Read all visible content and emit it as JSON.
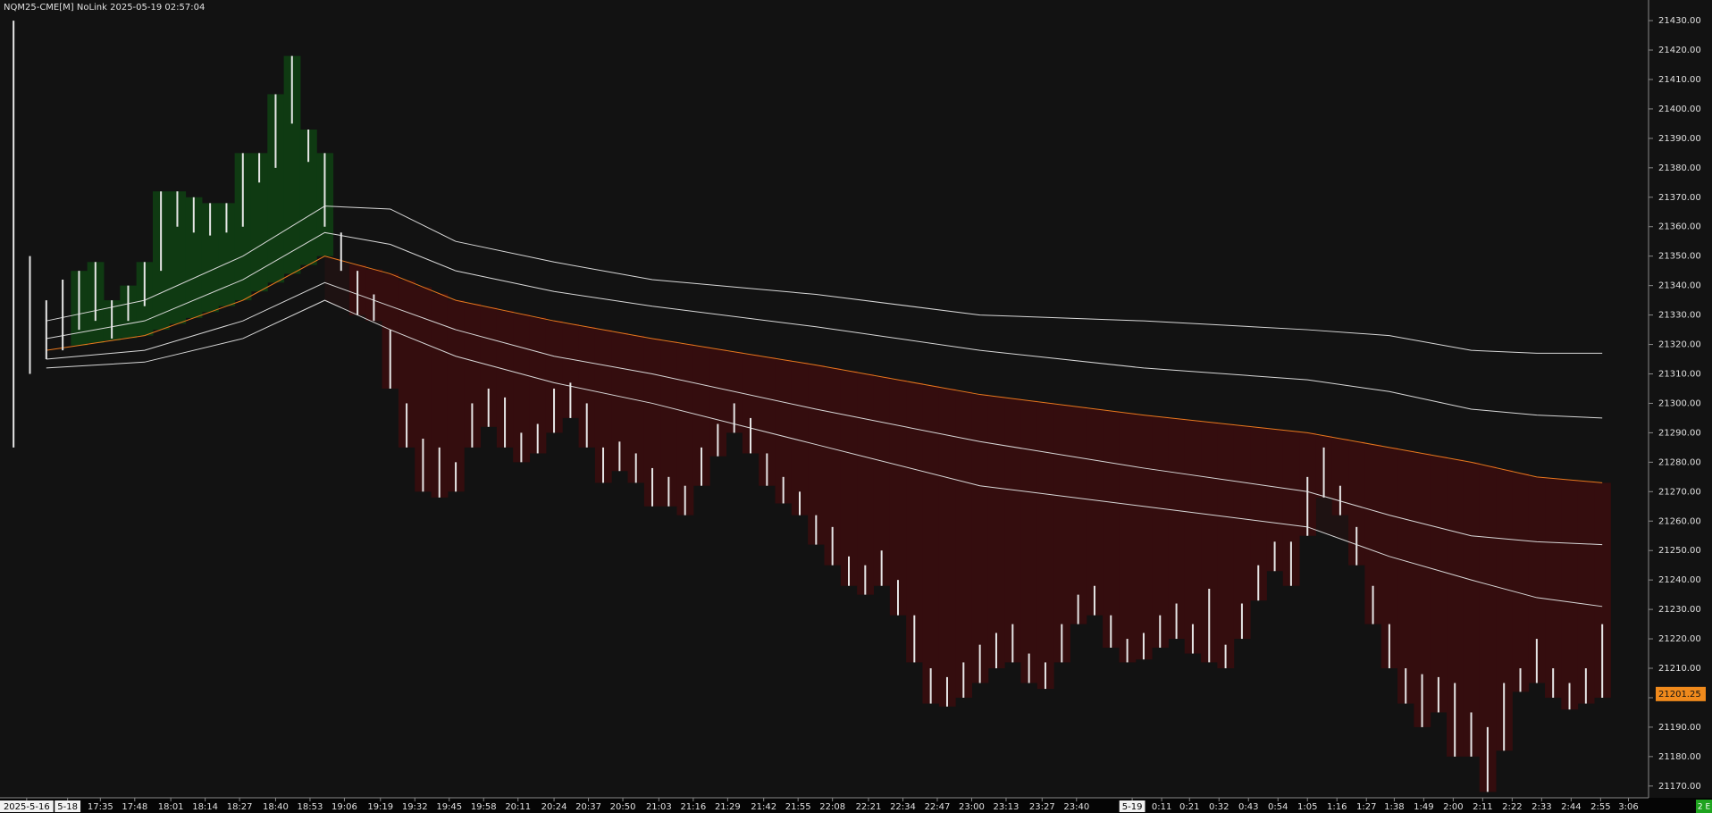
{
  "chart_data": {
    "type": "ohlc",
    "title": "NQM25-CME[M] NoLink 2025-05-19 02:57:04",
    "status": "2 E",
    "last_price": 21201.25,
    "last_price_color": "#f08a1c",
    "background": "#121212",
    "bar_color": "#e6e6e6",
    "above_fill": "#0f3a12",
    "below_fill": "#340d0e",
    "band_fill": "#1e1212",
    "xlim": [
      0,
      100
    ],
    "ylim": [
      21166,
      21437
    ],
    "high": [
      21430,
      21350,
      21335,
      21342,
      21345,
      21348,
      21335,
      21340,
      21348,
      21372,
      21372,
      21370,
      21368,
      21368,
      21385,
      21385,
      21405,
      21418,
      21393,
      21385,
      21358,
      21345,
      21337,
      21325,
      21300,
      21288,
      21285,
      21280,
      21300,
      21305,
      21302,
      21290,
      21293,
      21305,
      21307,
      21300,
      21285,
      21287,
      21283,
      21278,
      21275,
      21272,
      21285,
      21293,
      21300,
      21295,
      21283,
      21275,
      21270,
      21262,
      21258,
      21248,
      21245,
      21250,
      21240,
      21228,
      21210,
      21207,
      21212,
      21218,
      21222,
      21225,
      21215,
      21212,
      21225,
      21235,
      21238,
      21228,
      21220,
      21222,
      21228,
      21232,
      21225,
      21237,
      21218,
      21232,
      21245,
      21253,
      21253,
      21275,
      21285,
      21272,
      21258,
      21238,
      21225,
      21210,
      21208,
      21207,
      21205,
      21195,
      21190,
      21205,
      21210,
      21220,
      21210,
      21205,
      21210,
      21225
    ],
    "low": [
      21285,
      21310,
      21315,
      21318,
      21325,
      21328,
      21322,
      21328,
      21333,
      21345,
      21360,
      21358,
      21357,
      21358,
      21360,
      21375,
      21380,
      21395,
      21382,
      21360,
      21345,
      21330,
      21328,
      21305,
      21285,
      21270,
      21268,
      21270,
      21285,
      21292,
      21285,
      21280,
      21283,
      21290,
      21295,
      21285,
      21273,
      21277,
      21273,
      21265,
      21265,
      21262,
      21272,
      21282,
      21290,
      21283,
      21272,
      21266,
      21262,
      21252,
      21245,
      21238,
      21235,
      21238,
      21228,
      21212,
      21198,
      21197,
      21200,
      21205,
      21210,
      21212,
      21205,
      21203,
      21212,
      21225,
      21228,
      21217,
      21212,
      21213,
      21217,
      21220,
      21215,
      21212,
      21210,
      21220,
      21233,
      21243,
      21238,
      21255,
      21268,
      21262,
      21245,
      21225,
      21210,
      21198,
      21190,
      21195,
      21180,
      21180,
      21168,
      21182,
      21202,
      21205,
      21200,
      21196,
      21198,
      21200
    ],
    "band_x": [
      2,
      8,
      14,
      19,
      23,
      27,
      33,
      39,
      49,
      59,
      69,
      79,
      84,
      89,
      93,
      97
    ],
    "center_band": 2,
    "bands": [
      {
        "color": "#d8d8d8",
        "values": [
          21328,
          21335,
          21350,
          21367,
          21366,
          21355,
          21348,
          21342,
          21337,
          21330,
          21328,
          21325,
          21323,
          21318,
          21317,
          21317
        ]
      },
      {
        "color": "#d8d8d8",
        "values": [
          21322,
          21328,
          21342,
          21358,
          21354,
          21345,
          21338,
          21333,
          21326,
          21318,
          21312,
          21308,
          21304,
          21298,
          21296,
          21295
        ]
      },
      {
        "color": "#e8781e",
        "values": [
          21318,
          21323,
          21335,
          21350,
          21344,
          21335,
          21328,
          21322,
          21313,
          21303,
          21296,
          21290,
          21285,
          21280,
          21275,
          21273
        ]
      },
      {
        "color": "#d8d8d8",
        "values": [
          21315,
          21318,
          21328,
          21341,
          21333,
          21325,
          21316,
          21310,
          21298,
          21287,
          21278,
          21270,
          21262,
          21255,
          21253,
          21252
        ]
      },
      {
        "color": "#d8d8d8",
        "values": [
          21312,
          21314,
          21322,
          21335,
          21325,
          21316,
          21307,
          21300,
          21286,
          21272,
          21265,
          21258,
          21248,
          21240,
          21234,
          21231
        ]
      }
    ],
    "yticks": [
      {
        "value": 21170,
        "label": "21170.00"
      },
      {
        "value": 21180,
        "label": "21180.00"
      },
      {
        "value": 21190,
        "label": "21190.00"
      },
      {
        "value": 21200,
        "label": "21200.00"
      },
      {
        "value": 21210,
        "label": "21210.00"
      },
      {
        "value": 21220,
        "label": "21220.00"
      },
      {
        "value": 21230,
        "label": "21230.00"
      },
      {
        "value": 21240,
        "label": "21240.00"
      },
      {
        "value": 21250,
        "label": "21250.00"
      },
      {
        "value": 21260,
        "label": "21260.00"
      },
      {
        "value": 21270,
        "label": "21270.00"
      },
      {
        "value": 21280,
        "label": "21280.00"
      },
      {
        "value": 21290,
        "label": "21290.00"
      },
      {
        "value": 21300,
        "label": "21300.00"
      },
      {
        "value": 21310,
        "label": "21310.00"
      },
      {
        "value": 21320,
        "label": "21320.00"
      },
      {
        "value": 21330,
        "label": "21330.00"
      },
      {
        "value": 21340,
        "label": "21340.00"
      },
      {
        "value": 21350,
        "label": "21350.00"
      },
      {
        "value": 21360,
        "label": "21360.00"
      },
      {
        "value": 21370,
        "label": "21370.00"
      },
      {
        "value": 21380,
        "label": "21380.00"
      },
      {
        "value": 21390,
        "label": "21390.00"
      },
      {
        "value": 21400,
        "label": "21400.00"
      },
      {
        "value": 21410,
        "label": "21410.00"
      },
      {
        "value": 21420,
        "label": "21420.00"
      },
      {
        "value": 21430,
        "label": "21430.00"
      }
    ],
    "xticks": [
      {
        "value": 1.3,
        "label": "2025-5-16"
      },
      {
        "value": 3.8,
        "label": "5-18"
      },
      {
        "value": 5.8,
        "label": "17:35"
      },
      {
        "value": 7.9,
        "label": "17:48"
      },
      {
        "value": 10.1,
        "label": "18:01"
      },
      {
        "value": 12.2,
        "label": "18:14"
      },
      {
        "value": 14.3,
        "label": "18:27"
      },
      {
        "value": 16.5,
        "label": "18:40"
      },
      {
        "value": 18.6,
        "label": "18:53"
      },
      {
        "value": 20.7,
        "label": "19:06"
      },
      {
        "value": 22.9,
        "label": "19:19"
      },
      {
        "value": 25.0,
        "label": "19:32"
      },
      {
        "value": 27.1,
        "label": "19:45"
      },
      {
        "value": 29.2,
        "label": "19:58"
      },
      {
        "value": 31.3,
        "label": "20:11"
      },
      {
        "value": 33.5,
        "label": "20:24"
      },
      {
        "value": 35.6,
        "label": "20:37"
      },
      {
        "value": 37.7,
        "label": "20:50"
      },
      {
        "value": 39.9,
        "label": "21:03"
      },
      {
        "value": 42.0,
        "label": "21:16"
      },
      {
        "value": 44.1,
        "label": "21:29"
      },
      {
        "value": 46.3,
        "label": "21:42"
      },
      {
        "value": 48.4,
        "label": "21:55"
      },
      {
        "value": 50.5,
        "label": "22:08"
      },
      {
        "value": 52.7,
        "label": "22:21"
      },
      {
        "value": 54.8,
        "label": "22:34"
      },
      {
        "value": 56.9,
        "label": "22:47"
      },
      {
        "value": 59.0,
        "label": "23:00"
      },
      {
        "value": 61.1,
        "label": "23:13"
      },
      {
        "value": 63.3,
        "label": "23:27"
      },
      {
        "value": 65.4,
        "label": "23:40"
      },
      {
        "value": 68.8,
        "label": "5-19"
      },
      {
        "value": 70.6,
        "label": "0:11"
      },
      {
        "value": 72.3,
        "label": "0:21"
      },
      {
        "value": 74.1,
        "label": "0:32"
      },
      {
        "value": 75.9,
        "label": "0:43"
      },
      {
        "value": 77.7,
        "label": "0:54"
      },
      {
        "value": 79.5,
        "label": "1:05"
      },
      {
        "value": 81.3,
        "label": "1:16"
      },
      {
        "value": 83.1,
        "label": "1:27"
      },
      {
        "value": 84.8,
        "label": "1:38"
      },
      {
        "value": 86.6,
        "label": "1:49"
      },
      {
        "value": 88.4,
        "label": "2:00"
      },
      {
        "value": 90.2,
        "label": "2:11"
      },
      {
        "value": 92.0,
        "label": "2:22"
      },
      {
        "value": 93.8,
        "label": "2:33"
      },
      {
        "value": 95.6,
        "label": "2:44"
      },
      {
        "value": 97.4,
        "label": "2:55"
      },
      {
        "value": 99.1,
        "label": "3:06"
      }
    ]
  }
}
